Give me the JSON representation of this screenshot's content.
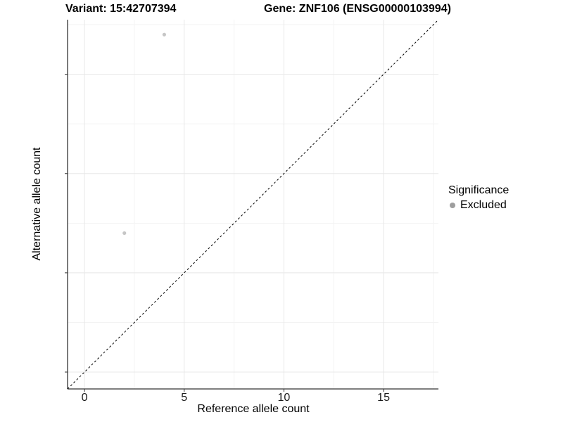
{
  "header": {
    "title_left": "Variant: 15:42707394",
    "title_right": "Gene: ZNF106 (ENSG00000103994)"
  },
  "legend": {
    "title": "Significance",
    "items": [
      {
        "label": "Excluded",
        "color": "#9e9e9e"
      }
    ]
  },
  "colors": {
    "background": "#ffffff",
    "axis_line": "#333333",
    "tick_mark": "#333333",
    "grid_major": "#e8e8e8",
    "grid_minor": "#f3f3f3",
    "reference_line": "#000000",
    "point": "#c6c6c6"
  },
  "chart_data": {
    "type": "scatter",
    "title": "Variant: 15:42707394   Gene: ZNF106 (ENSG00000103994)",
    "xlabel": "Reference allele count",
    "ylabel": "Alternative allele count",
    "xlim": [
      -0.85,
      17.75
    ],
    "ylim": [
      -0.85,
      17.75
    ],
    "x_ticks": [
      0,
      5,
      10,
      15
    ],
    "y_ticks": [
      0,
      5,
      10,
      15
    ],
    "x_minor_ticks": [
      2.5,
      7.5,
      12.5,
      17.5
    ],
    "y_minor_ticks": [
      2.5,
      7.5,
      12.5,
      17.5
    ],
    "grid": true,
    "legend_position": "right",
    "reference_line": {
      "style": "dashed",
      "slope": 1,
      "intercept": 0
    },
    "series": [
      {
        "name": "Excluded",
        "color": "#c6c6c6",
        "data": [
          {
            "x": 4,
            "y": 17
          },
          {
            "x": 2,
            "y": 7
          }
        ]
      }
    ]
  }
}
